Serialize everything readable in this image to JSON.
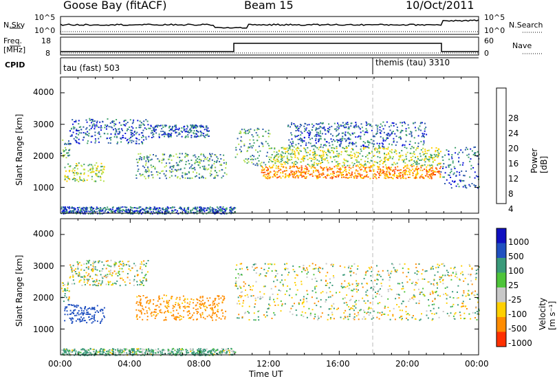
{
  "header": {
    "station": "Goose Bay (fitACF)",
    "beam": "Beam 15",
    "date": "10/Oct/2011"
  },
  "noise_panel": {
    "left_label": "N.Sky",
    "left_ticks": [
      "10^5",
      "10^0"
    ],
    "right_ticks": [
      "10^5",
      "10^0"
    ],
    "right_label": "N.Search"
  },
  "freq_panel": {
    "left_label_1": "Freq.",
    "left_label_2": "[MHz]",
    "left_ticks": [
      "18",
      "8"
    ],
    "right_ticks": [
      "60",
      "0"
    ],
    "right_label": "Nave"
  },
  "cpid": {
    "label": "CPID",
    "segments": [
      {
        "text": "tau (fast) 503",
        "start_hour": 0
      },
      {
        "text": "themis (tau) 3310",
        "start_hour": 18
      }
    ]
  },
  "axes": {
    "xlabel": "Time UT",
    "x_ticks": [
      "00:00",
      "04:00",
      "08:00",
      "12:00",
      "16:00",
      "20:00",
      "00:00"
    ],
    "ylabel": "Slant Range [km]",
    "y_ticks": [
      "4000",
      "3000",
      "2000",
      "1000"
    ]
  },
  "power_colorbar": {
    "title": "Power [dB]",
    "ticks": [
      "28",
      "24",
      "20",
      "16",
      "12",
      "8",
      "4"
    ],
    "colors": [
      "#ff0000",
      "#ff4a00",
      "#ff8c00",
      "#ffd000",
      "#b4e04a",
      "#3ea06b",
      "#2a5aa8",
      "#0a14d8"
    ]
  },
  "velocity_colorbar": {
    "title": "Velocity [m s⁻¹]",
    "ticks": [
      "1000",
      "500",
      "100",
      "25",
      "-25",
      "-100",
      "-500",
      "-1000"
    ],
    "colors": [
      "#1010c0",
      "#2050c0",
      "#3a9a7a",
      "#4ec43a",
      "#c8c8c8",
      "#ffd000",
      "#ff8c00",
      "#ff3000"
    ]
  },
  "chart_data": {
    "type": "heatmap",
    "x_range_hours": [
      0,
      24
    ],
    "y_range_km": [
      180,
      4500
    ],
    "power_echo_regions": [
      {
        "t0": 0.0,
        "t1": 0.5,
        "r0": 1900,
        "r1": 2600,
        "level": 2
      },
      {
        "t0": 0.2,
        "t1": 2.5,
        "r0": 1200,
        "r1": 1800,
        "level": 3
      },
      {
        "t0": 0.5,
        "t1": 5.0,
        "r0": 2400,
        "r1": 3200,
        "level": 1
      },
      {
        "t0": 4.3,
        "t1": 9.5,
        "r0": 1300,
        "r1": 2100,
        "level": 2
      },
      {
        "t0": 5.0,
        "t1": 8.5,
        "r0": 2600,
        "r1": 3000,
        "level": 1
      },
      {
        "t0": 10.0,
        "t1": 12.0,
        "r0": 1700,
        "r1": 2900,
        "level": 2
      },
      {
        "t0": 11.5,
        "t1": 21.8,
        "r0": 1300,
        "r1": 1700,
        "level": 5
      },
      {
        "t0": 12.0,
        "t1": 21.8,
        "r0": 1700,
        "r1": 2300,
        "level": 3
      },
      {
        "t0": 13.0,
        "t1": 21.0,
        "r0": 2300,
        "r1": 3100,
        "level": 1
      },
      {
        "t0": 21.8,
        "t1": 24.0,
        "r0": 1000,
        "r1": 2300,
        "level": 1
      },
      {
        "t0": 0.0,
        "t1": 10.0,
        "r0": 180,
        "r1": 400,
        "level": 1
      }
    ],
    "velocity_echo_regions": [
      {
        "t0": 0.0,
        "t1": 0.5,
        "r0": 1900,
        "r1": 2600,
        "vel": 25
      },
      {
        "t0": 0.2,
        "t1": 2.5,
        "r0": 1200,
        "r1": 1800,
        "vel": 500
      },
      {
        "t0": 0.5,
        "t1": 5.0,
        "r0": 2400,
        "r1": 3200,
        "vel": 0
      },
      {
        "t0": 4.3,
        "t1": 9.5,
        "r0": 1300,
        "r1": 2100,
        "vel": -200
      },
      {
        "t0": 10.0,
        "t1": 24.0,
        "r0": 1300,
        "r1": 3100,
        "vel": 0
      },
      {
        "t0": 0.0,
        "t1": 10.0,
        "r0": 180,
        "r1": 400,
        "vel": 100
      }
    ]
  }
}
